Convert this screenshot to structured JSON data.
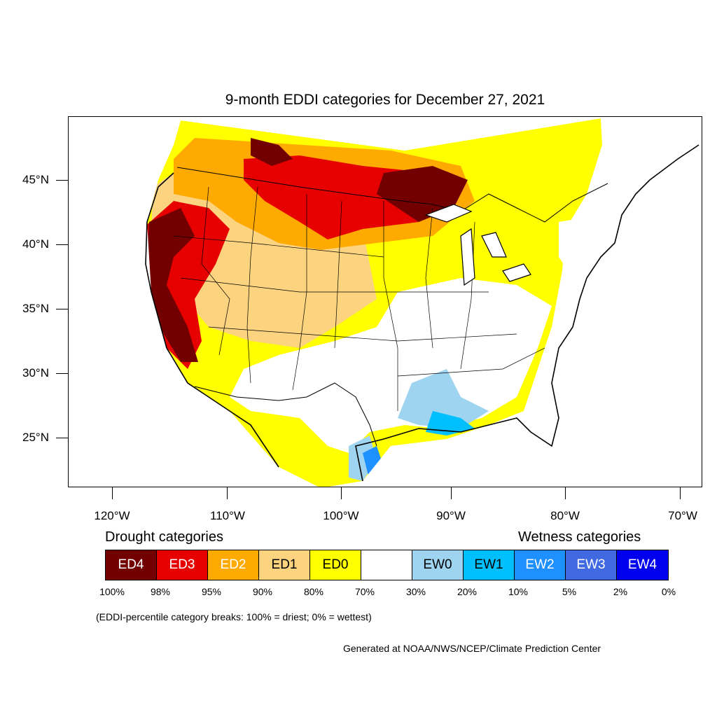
{
  "map": {
    "title": "9-month EDDI categories for December 27, 2021",
    "lat_labels": [
      "45°N",
      "40°N",
      "35°N",
      "30°N",
      "25°N"
    ],
    "lon_labels": [
      "120°W",
      "110°W",
      "100°W",
      "90°W",
      "80°W",
      "70°W"
    ]
  },
  "legend": {
    "drought_heading": "Drought categories",
    "wetness_heading": "Wetness categories",
    "categories": [
      {
        "label": "ED4",
        "color": "#730000",
        "text_color": "#ffffff"
      },
      {
        "label": "ED3",
        "color": "#e60000",
        "text_color": "#ffffff"
      },
      {
        "label": "ED2",
        "color": "#ffaa00",
        "text_color": "#ffffff"
      },
      {
        "label": "ED1",
        "color": "#fcd37f",
        "text_color": "#000000"
      },
      {
        "label": "ED0",
        "color": "#ffff00",
        "text_color": "#000000"
      },
      {
        "label": "",
        "color": "#ffffff",
        "text_color": "#000000"
      },
      {
        "label": "EW0",
        "color": "#9fd4f0",
        "text_color": "#000000"
      },
      {
        "label": "EW1",
        "color": "#00bfff",
        "text_color": "#000000"
      },
      {
        "label": "EW2",
        "color": "#1e90ff",
        "text_color": "#ffffff"
      },
      {
        "label": "EW3",
        "color": "#4169e1",
        "text_color": "#ffffff"
      },
      {
        "label": "EW4",
        "color": "#0000ee",
        "text_color": "#ffffff"
      }
    ],
    "percent_breaks": [
      "100%",
      "98%",
      "95%",
      "90%",
      "80%",
      "70%",
      "30%",
      "20%",
      "10%",
      "5%",
      "2%",
      "0%"
    ],
    "note": "(EDDI-percentile category breaks: 100% = driest; 0% = wettest)"
  },
  "credit": "Generated at NOAA/NWS/NCEP/Climate Prediction Center"
}
